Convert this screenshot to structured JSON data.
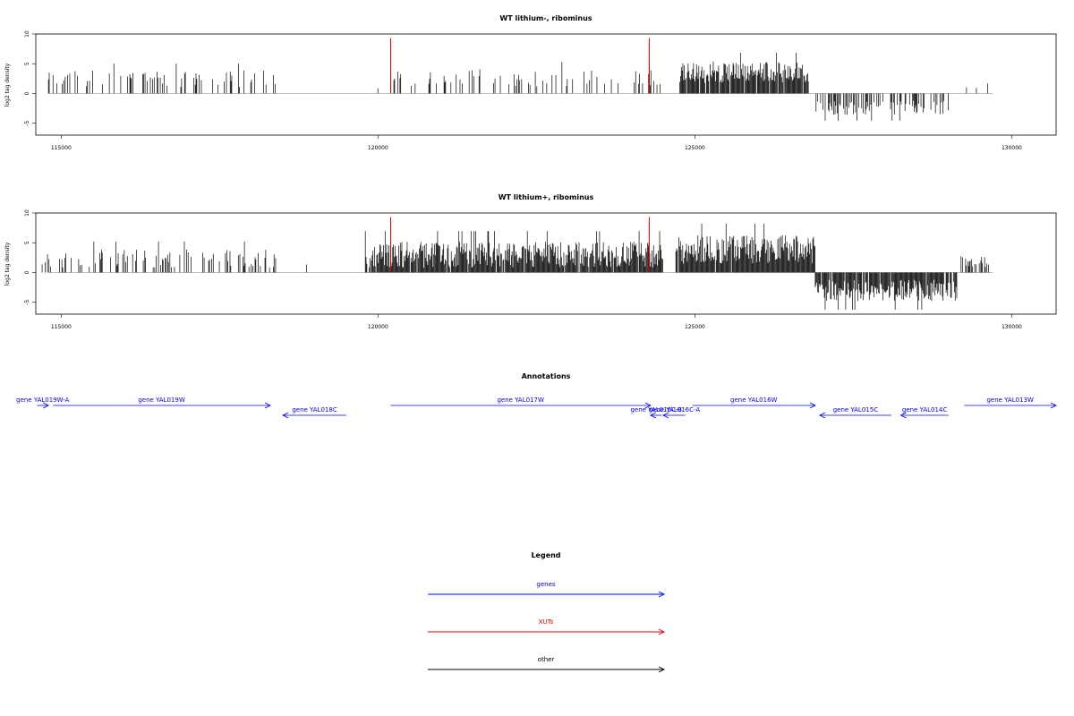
{
  "chart_data": [
    {
      "type": "bar",
      "title": "WT lithium-, ribominus",
      "ylabel": "log2 tag density",
      "xlim": [
        114600,
        130700
      ],
      "ylim": [
        -7,
        10
      ],
      "x_ticks": [
        115000,
        120000,
        125000,
        130000
      ],
      "y_ticks": [
        -5,
        0,
        5,
        10
      ],
      "highlights": [
        {
          "x": 120200,
          "y": 9.3,
          "color": "#e00000"
        },
        {
          "x": 124280,
          "y": 9.3,
          "color": "#e00000"
        }
      ],
      "segments": [
        {
          "start": 114800,
          "end": 118400,
          "mean": 2.5,
          "amp": 1.4,
          "density": 0.22
        },
        {
          "start": 119950,
          "end": 120000,
          "mean": 0.9,
          "amp": 0.2,
          "density": 0.1
        },
        {
          "start": 120250,
          "end": 124450,
          "mean": 2.6,
          "amp": 1.5,
          "density": 0.22
        },
        {
          "start": 124750,
          "end": 126800,
          "mean": 3.6,
          "amp": 1.8,
          "density": 0.9
        },
        {
          "start": 126900,
          "end": 129000,
          "mean": -2.4,
          "amp": 1.2,
          "density": 0.45
        },
        {
          "start": 129250,
          "end": 129700,
          "mean": 1.6,
          "amp": 1.0,
          "density": 0.15
        }
      ]
    },
    {
      "type": "bar",
      "title": "WT lithium+, ribominus",
      "ylabel": "log2 tag density",
      "xlim": [
        114600,
        130700
      ],
      "ylim": [
        -7,
        10
      ],
      "x_ticks": [
        115000,
        120000,
        125000,
        130000
      ],
      "y_ticks": [
        -5,
        0,
        5,
        10
      ],
      "highlights": [
        {
          "x": 120200,
          "y": 9.3,
          "color": "#e00000"
        },
        {
          "x": 124280,
          "y": 9.3,
          "color": "#e00000"
        }
      ],
      "segments": [
        {
          "start": 114700,
          "end": 118400,
          "mean": 2.3,
          "amp": 1.6,
          "density": 0.28
        },
        {
          "start": 118800,
          "end": 119600,
          "mean": 1.0,
          "amp": 0.5,
          "density": 0.04
        },
        {
          "start": 119800,
          "end": 124500,
          "mean": 3.0,
          "amp": 2.2,
          "density": 0.95
        },
        {
          "start": 124700,
          "end": 126900,
          "mean": 3.9,
          "amp": 2.4,
          "density": 0.95
        },
        {
          "start": 126900,
          "end": 129150,
          "mean": -3.0,
          "amp": 1.8,
          "density": 0.9
        },
        {
          "start": 129200,
          "end": 129700,
          "mean": 1.8,
          "amp": 1.0,
          "density": 0.35
        }
      ]
    }
  ],
  "annotations": {
    "title": "Annotations",
    "genes": [
      {
        "label": "gene YAL019W-A",
        "start": 114620,
        "end": 114800,
        "strand": "+",
        "row": 0
      },
      {
        "label": "gene YAL019W",
        "start": 114870,
        "end": 118300,
        "strand": "+",
        "row": 0
      },
      {
        "label": "gene YAL018C",
        "start": 118500,
        "end": 119500,
        "strand": "-",
        "row": 1
      },
      {
        "label": "gene YAL017W",
        "start": 120200,
        "end": 124300,
        "strand": "+",
        "row": 0
      },
      {
        "label": "gene YAL016C-B",
        "start": 124300,
        "end": 124480,
        "strand": "-",
        "row": 1
      },
      {
        "label": "gene YAL016C-A",
        "start": 124500,
        "end": 124850,
        "strand": "-",
        "row": 1
      },
      {
        "label": "gene YAL016W",
        "start": 124960,
        "end": 126900,
        "strand": "+",
        "row": 0
      },
      {
        "label": "gene YAL015C",
        "start": 126970,
        "end": 128100,
        "strand": "-",
        "row": 1
      },
      {
        "label": "gene YAL014C",
        "start": 128250,
        "end": 129000,
        "strand": "-",
        "row": 1
      },
      {
        "label": "gene YAL013W",
        "start": 129250,
        "end": 130700,
        "strand": "+",
        "row": 0
      }
    ]
  },
  "legend": {
    "title": "Legend",
    "items": [
      {
        "label": "genes",
        "color": "#0000ff"
      },
      {
        "label": "XUTs",
        "color": "#e00000"
      },
      {
        "label": "other",
        "color": "#000000"
      }
    ]
  }
}
